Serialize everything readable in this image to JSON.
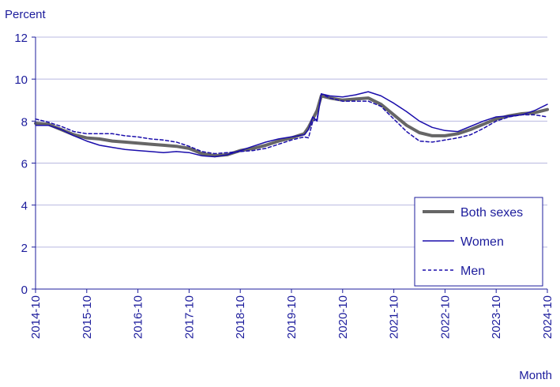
{
  "chart_data": {
    "type": "line",
    "ylabel": "Percent",
    "xlabel": "Month",
    "ylim": [
      0,
      12
    ],
    "yticks": [
      0,
      2,
      4,
      6,
      8,
      10,
      12
    ],
    "xticks": [
      "2014-10",
      "2015-10",
      "2016-10",
      "2017-10",
      "2018-10",
      "2019-10",
      "2020-10",
      "2021-10",
      "2022-10",
      "2023-10",
      "2024-10"
    ],
    "grid": "horizontal",
    "legend": "bottom-right",
    "colors": {
      "text": "#1c1c9c",
      "grid": "#b8b8e0",
      "both_sexes": "#666666",
      "women": "#1a0dab",
      "men": "#1a0dab"
    },
    "series": [
      {
        "name": "Both sexes",
        "style": "thick-gray",
        "points": [
          [
            "2014-10",
            7.9
          ],
          [
            "2015-01",
            7.85
          ],
          [
            "2015-04",
            7.6
          ],
          [
            "2015-07",
            7.35
          ],
          [
            "2015-10",
            7.2
          ],
          [
            "2016-01",
            7.15
          ],
          [
            "2016-04",
            7.05
          ],
          [
            "2016-07",
            7.0
          ],
          [
            "2016-10",
            6.95
          ],
          [
            "2017-01",
            6.9
          ],
          [
            "2017-04",
            6.85
          ],
          [
            "2017-07",
            6.8
          ],
          [
            "2017-10",
            6.7
          ],
          [
            "2018-01",
            6.45
          ],
          [
            "2018-04",
            6.35
          ],
          [
            "2018-07",
            6.4
          ],
          [
            "2018-10",
            6.6
          ],
          [
            "2019-01",
            6.7
          ],
          [
            "2019-04",
            6.85
          ],
          [
            "2019-07",
            7.05
          ],
          [
            "2019-10",
            7.2
          ],
          [
            "2020-01",
            7.4
          ],
          [
            "2020-02",
            7.7
          ],
          [
            "2020-03",
            8.1
          ],
          [
            "2020-04",
            8.5
          ],
          [
            "2020-05",
            9.2
          ],
          [
            "2020-07",
            9.1
          ],
          [
            "2020-10",
            9.0
          ],
          [
            "2021-01",
            9.05
          ],
          [
            "2021-04",
            9.1
          ],
          [
            "2021-07",
            8.8
          ],
          [
            "2021-10",
            8.3
          ],
          [
            "2022-01",
            7.8
          ],
          [
            "2022-04",
            7.45
          ],
          [
            "2022-07",
            7.3
          ],
          [
            "2022-10",
            7.3
          ],
          [
            "2023-01",
            7.4
          ],
          [
            "2023-04",
            7.6
          ],
          [
            "2023-07",
            7.85
          ],
          [
            "2023-10",
            8.1
          ],
          [
            "2024-01",
            8.25
          ],
          [
            "2024-04",
            8.35
          ],
          [
            "2024-07",
            8.4
          ],
          [
            "2024-10",
            8.55
          ]
        ]
      },
      {
        "name": "Women",
        "style": "thin-solid",
        "points": [
          [
            "2014-10",
            7.8
          ],
          [
            "2015-01",
            7.8
          ],
          [
            "2015-04",
            7.6
          ],
          [
            "2015-07",
            7.3
          ],
          [
            "2015-10",
            7.05
          ],
          [
            "2016-01",
            6.85
          ],
          [
            "2016-04",
            6.75
          ],
          [
            "2016-07",
            6.65
          ],
          [
            "2016-10",
            6.6
          ],
          [
            "2017-01",
            6.55
          ],
          [
            "2017-04",
            6.5
          ],
          [
            "2017-07",
            6.55
          ],
          [
            "2017-10",
            6.5
          ],
          [
            "2018-01",
            6.35
          ],
          [
            "2018-04",
            6.3
          ],
          [
            "2018-07",
            6.4
          ],
          [
            "2018-10",
            6.6
          ],
          [
            "2019-01",
            6.8
          ],
          [
            "2019-04",
            7.0
          ],
          [
            "2019-07",
            7.15
          ],
          [
            "2019-10",
            7.25
          ],
          [
            "2020-01",
            7.35
          ],
          [
            "2020-02",
            7.6
          ],
          [
            "2020-03",
            8.2
          ],
          [
            "2020-04",
            8.0
          ],
          [
            "2020-05",
            9.3
          ],
          [
            "2020-07",
            9.2
          ],
          [
            "2020-10",
            9.15
          ],
          [
            "2021-01",
            9.25
          ],
          [
            "2021-04",
            9.4
          ],
          [
            "2021-07",
            9.2
          ],
          [
            "2021-10",
            8.85
          ],
          [
            "2022-01",
            8.45
          ],
          [
            "2022-04",
            8.0
          ],
          [
            "2022-07",
            7.7
          ],
          [
            "2022-10",
            7.55
          ],
          [
            "2023-01",
            7.5
          ],
          [
            "2023-04",
            7.75
          ],
          [
            "2023-07",
            8.0
          ],
          [
            "2023-10",
            8.2
          ],
          [
            "2024-01",
            8.25
          ],
          [
            "2024-04",
            8.3
          ],
          [
            "2024-07",
            8.5
          ],
          [
            "2024-10",
            8.8
          ]
        ]
      },
      {
        "name": "Men",
        "style": "thin-dashed",
        "points": [
          [
            "2014-10",
            8.1
          ],
          [
            "2015-01",
            7.95
          ],
          [
            "2015-04",
            7.75
          ],
          [
            "2015-07",
            7.5
          ],
          [
            "2015-10",
            7.4
          ],
          [
            "2016-01",
            7.4
          ],
          [
            "2016-04",
            7.4
          ],
          [
            "2016-07",
            7.3
          ],
          [
            "2016-10",
            7.25
          ],
          [
            "2017-01",
            7.15
          ],
          [
            "2017-04",
            7.1
          ],
          [
            "2017-07",
            7.0
          ],
          [
            "2017-10",
            6.8
          ],
          [
            "2018-01",
            6.55
          ],
          [
            "2018-04",
            6.45
          ],
          [
            "2018-07",
            6.5
          ],
          [
            "2018-10",
            6.55
          ],
          [
            "2019-01",
            6.6
          ],
          [
            "2019-04",
            6.7
          ],
          [
            "2019-07",
            6.9
          ],
          [
            "2019-10",
            7.1
          ],
          [
            "2020-01",
            7.25
          ],
          [
            "2020-02",
            7.2
          ],
          [
            "2020-03",
            8.0
          ],
          [
            "2020-04",
            8.1
          ],
          [
            "2020-05",
            9.3
          ],
          [
            "2020-07",
            9.1
          ],
          [
            "2020-10",
            8.95
          ],
          [
            "2021-01",
            8.95
          ],
          [
            "2021-04",
            8.95
          ],
          [
            "2021-07",
            8.7
          ],
          [
            "2021-10",
            8.1
          ],
          [
            "2022-01",
            7.5
          ],
          [
            "2022-04",
            7.05
          ],
          [
            "2022-07",
            7.0
          ],
          [
            "2022-10",
            7.1
          ],
          [
            "2023-01",
            7.2
          ],
          [
            "2023-04",
            7.35
          ],
          [
            "2023-07",
            7.65
          ],
          [
            "2023-10",
            8.0
          ],
          [
            "2024-01",
            8.2
          ],
          [
            "2024-04",
            8.3
          ],
          [
            "2024-07",
            8.3
          ],
          [
            "2024-10",
            8.2
          ]
        ]
      }
    ]
  }
}
